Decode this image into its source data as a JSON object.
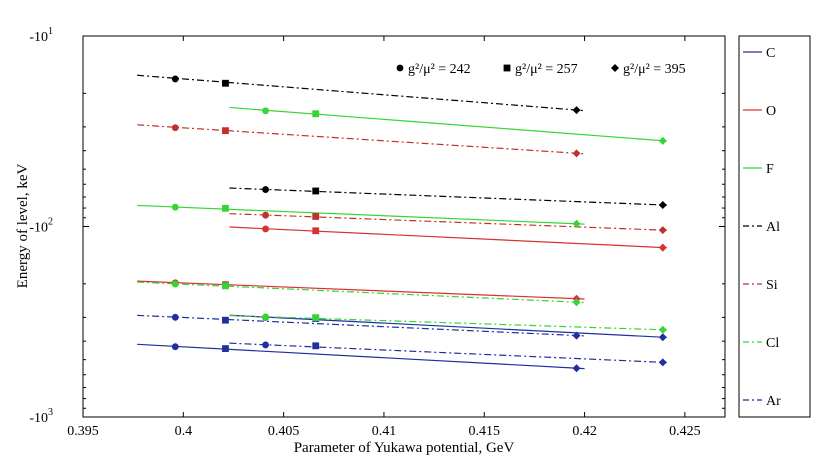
{
  "chart_data": {
    "type": "line",
    "title": "",
    "xlabel": "Parameter of Yukawa potential, GeV",
    "ylabel": "Energy of level, keV",
    "xlim": [
      0.395,
      0.427
    ],
    "ylim_abs_log10": [
      1,
      3
    ],
    "y_scale": "log (negative values)",
    "x_ticks": [
      {
        "value": 0.395,
        "label": "0.395"
      },
      {
        "value": 0.4,
        "label": "0.4"
      },
      {
        "value": 0.405,
        "label": "0.405"
      },
      {
        "value": 0.41,
        "label": "0.41"
      },
      {
        "value": 0.415,
        "label": "0.415"
      },
      {
        "value": 0.42,
        "label": "0.42"
      },
      {
        "value": 0.425,
        "label": "0.425"
      }
    ],
    "y_ticks": [
      {
        "log": 1,
        "base": "-10",
        "exp": "1"
      },
      {
        "log": 2,
        "base": "-10",
        "exp": "2"
      },
      {
        "log": 3,
        "base": "-10",
        "exp": "3"
      }
    ],
    "marker_legend": [
      {
        "marker": "circle",
        "label": "g²/μ² = 242"
      },
      {
        "marker": "square",
        "label": "g²/μ² = 257"
      },
      {
        "marker": "diamond",
        "label": "g²/μ² = 395"
      }
    ],
    "legend": [
      {
        "name": "C",
        "color": "#1f2f9e",
        "dash": "solid"
      },
      {
        "name": "O",
        "color": "#d93030",
        "dash": "solid"
      },
      {
        "name": "F",
        "color": "#33d633",
        "dash": "solid"
      },
      {
        "name": "Al",
        "color": "#000000",
        "dash": "dashdot"
      },
      {
        "name": "Si",
        "color": "#c03030",
        "dash": "dashdot"
      },
      {
        "name": "Cl",
        "color": "#33d633",
        "dash": "dashdot"
      },
      {
        "name": "Ar",
        "color": "#1f2f9e",
        "dash": "dashdot"
      }
    ],
    "series": [
      {
        "name": "Al",
        "color": "#000000",
        "dash": "dashdot",
        "x_start": 0.3977,
        "x_end": 0.42,
        "points": [
          {
            "x": 0.3996,
            "y": -16.8,
            "m": "circle"
          },
          {
            "x": 0.4021,
            "y": -17.7,
            "m": "square"
          },
          {
            "x": 0.4196,
            "y": -24.5,
            "m": "diamond"
          }
        ]
      },
      {
        "name": "F",
        "color": "#33d633",
        "dash": "solid",
        "x_start": 0.4023,
        "x_end": 0.4241,
        "points": [
          {
            "x": 0.4041,
            "y": -24.7,
            "m": "circle"
          },
          {
            "x": 0.4066,
            "y": -25.6,
            "m": "square"
          },
          {
            "x": 0.4239,
            "y": -35.5,
            "m": "diamond"
          }
        ]
      },
      {
        "name": "Si",
        "color": "#c03030",
        "dash": "dashdot",
        "x_start": 0.3977,
        "x_end": 0.42,
        "points": [
          {
            "x": 0.3996,
            "y": -30.3,
            "m": "circle"
          },
          {
            "x": 0.4021,
            "y": -31.4,
            "m": "square"
          },
          {
            "x": 0.4196,
            "y": -41.3,
            "m": "diamond"
          }
        ]
      },
      {
        "name": "Al",
        "color": "#000000",
        "dash": "dashdot",
        "x_start": 0.4023,
        "x_end": 0.4241,
        "points": [
          {
            "x": 0.4041,
            "y": -64.0,
            "m": "circle"
          },
          {
            "x": 0.4066,
            "y": -65.1,
            "m": "square"
          },
          {
            "x": 0.4239,
            "y": -77.1,
            "m": "diamond"
          }
        ]
      },
      {
        "name": "F",
        "color": "#33d633",
        "dash": "solid",
        "x_start": 0.3977,
        "x_end": 0.42,
        "points": [
          {
            "x": 0.3996,
            "y": -79.2,
            "m": "circle"
          },
          {
            "x": 0.4021,
            "y": -80.3,
            "m": "square"
          },
          {
            "x": 0.4196,
            "y": -96.8,
            "m": "diamond"
          }
        ]
      },
      {
        "name": "Si",
        "color": "#c03030",
        "dash": "dashdot",
        "x_start": 0.4023,
        "x_end": 0.4241,
        "points": [
          {
            "x": 0.4041,
            "y": -87.2,
            "m": "circle"
          },
          {
            "x": 0.4066,
            "y": -88.6,
            "m": "square"
          },
          {
            "x": 0.4239,
            "y": -104.5,
            "m": "diamond"
          }
        ]
      },
      {
        "name": "O",
        "color": "#d93030",
        "dash": "solid",
        "x_start": 0.4023,
        "x_end": 0.4241,
        "points": [
          {
            "x": 0.4041,
            "y": -103.0,
            "m": "circle"
          },
          {
            "x": 0.4066,
            "y": -105.3,
            "m": "square"
          },
          {
            "x": 0.4239,
            "y": -129.0,
            "m": "diamond"
          }
        ]
      },
      {
        "name": "O",
        "color": "#d93030",
        "dash": "solid",
        "x_start": 0.3977,
        "x_end": 0.42,
        "points": [
          {
            "x": 0.3996,
            "y": -197.5,
            "m": "circle"
          },
          {
            "x": 0.4021,
            "y": -202.0,
            "m": "square"
          },
          {
            "x": 0.4196,
            "y": -239.4,
            "m": "diamond"
          }
        ]
      },
      {
        "name": "Cl",
        "color": "#33d633",
        "dash": "dashdot",
        "x_start": 0.3977,
        "x_end": 0.42,
        "points": [
          {
            "x": 0.3996,
            "y": -200.5,
            "m": "circle"
          },
          {
            "x": 0.4021,
            "y": -205.0,
            "m": "square"
          },
          {
            "x": 0.4196,
            "y": -249.7,
            "m": "diamond"
          }
        ]
      },
      {
        "name": "C",
        "color": "#1f2f9e",
        "dash": "solid",
        "x_start": 0.4023,
        "x_end": 0.4241,
        "points": [
          {
            "x": 0.4041,
            "y": -299.7,
            "m": "circle"
          },
          {
            "x": 0.4066,
            "y": -304.0,
            "m": "square"
          },
          {
            "x": 0.4239,
            "y": -381.4,
            "m": "diamond"
          }
        ]
      },
      {
        "name": "Cl",
        "color": "#33d633",
        "dash": "dashdot",
        "x_start": 0.4023,
        "x_end": 0.4241,
        "points": [
          {
            "x": 0.4041,
            "y": -298.1,
            "m": "circle"
          },
          {
            "x": 0.4066,
            "y": -300.8,
            "m": "square"
          },
          {
            "x": 0.4239,
            "y": -348.5,
            "m": "diamond"
          }
        ]
      },
      {
        "name": "Ar",
        "color": "#1f2f9e",
        "dash": "dashdot",
        "x_start": 0.3977,
        "x_end": 0.42,
        "points": [
          {
            "x": 0.3996,
            "y": -299.7,
            "m": "circle"
          },
          {
            "x": 0.4021,
            "y": -310.3,
            "m": "square"
          },
          {
            "x": 0.4196,
            "y": -373.7,
            "m": "diamond"
          }
        ]
      },
      {
        "name": "Ar",
        "color": "#1f2f9e",
        "dash": "dashdot",
        "x_start": 0.4023,
        "x_end": 0.4241,
        "points": [
          {
            "x": 0.4041,
            "y": -418.5,
            "m": "circle"
          },
          {
            "x": 0.4066,
            "y": -423.0,
            "m": "square"
          },
          {
            "x": 0.4239,
            "y": -516.6,
            "m": "diamond"
          }
        ]
      },
      {
        "name": "C",
        "color": "#1f2f9e",
        "dash": "solid",
        "x_start": 0.3977,
        "x_end": 0.42,
        "points": [
          {
            "x": 0.3996,
            "y": -427.5,
            "m": "circle"
          },
          {
            "x": 0.4021,
            "y": -437.4,
            "m": "square"
          },
          {
            "x": 0.4196,
            "y": -554.6,
            "m": "diamond"
          }
        ]
      }
    ]
  }
}
